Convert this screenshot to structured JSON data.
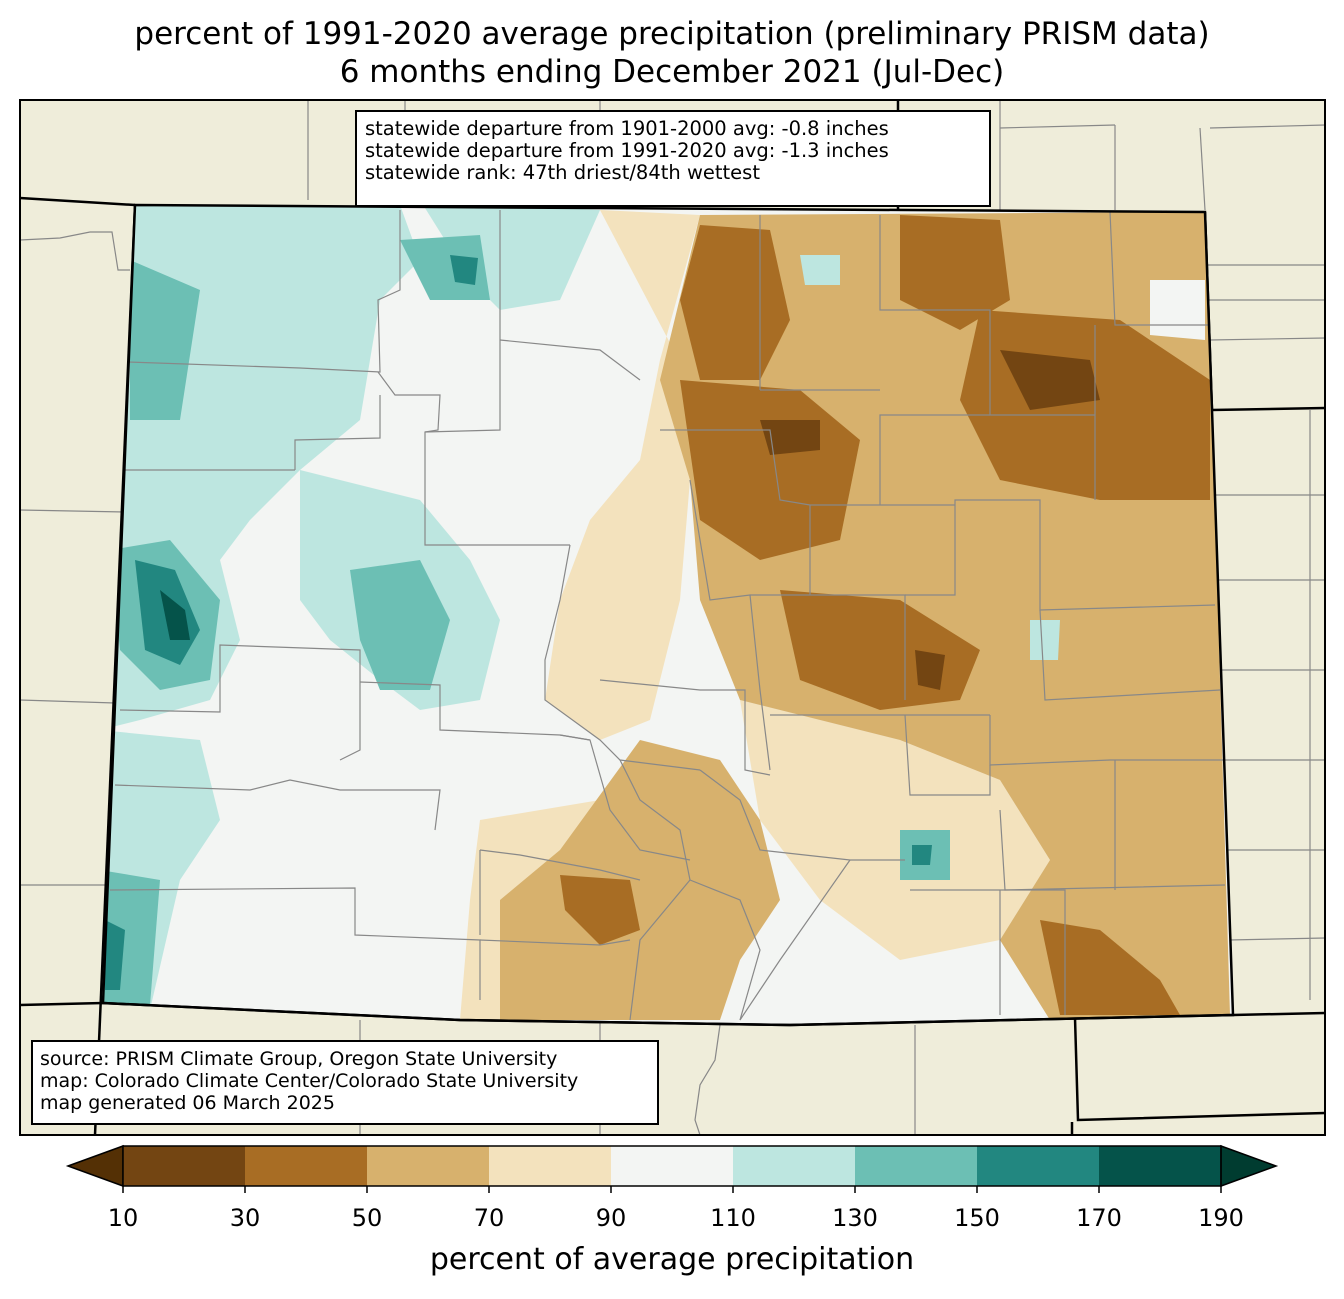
{
  "title": {
    "line1": "percent of 1991-2020 average precipitation (preliminary PRISM data)",
    "line2": "6 months ending December 2021 (Jul-Dec)"
  },
  "stats": {
    "line1": "statewide departure from 1901-2000 avg: -0.8 inches",
    "line2": "statewide departure from 1991-2020 avg: -1.3 inches",
    "line3": "statewide rank: 47th driest/84th wettest"
  },
  "source": {
    "line1": "source: PRISM Climate Group, Oregon State University",
    "line2": "map: Colorado Climate Center/Colorado State University",
    "line3": "map generated 06 March 2025"
  },
  "colorbar": {
    "label": "percent of average precipitation",
    "ticks": [
      "10",
      "30",
      "50",
      "70",
      "90",
      "110",
      "130",
      "150",
      "170",
      "190"
    ],
    "colors": [
      "#734512",
      "#a86d24",
      "#d7b16d",
      "#f3e2bd",
      "#f3f5f3",
      "#bde6e0",
      "#6cbfb4",
      "#228780",
      "#05534a"
    ],
    "under_color": "#543005",
    "over_color": "#003c30"
  },
  "map_colors": {
    "land": "#efedda",
    "county_lines": "#888888",
    "state_lines": "#000000"
  }
}
